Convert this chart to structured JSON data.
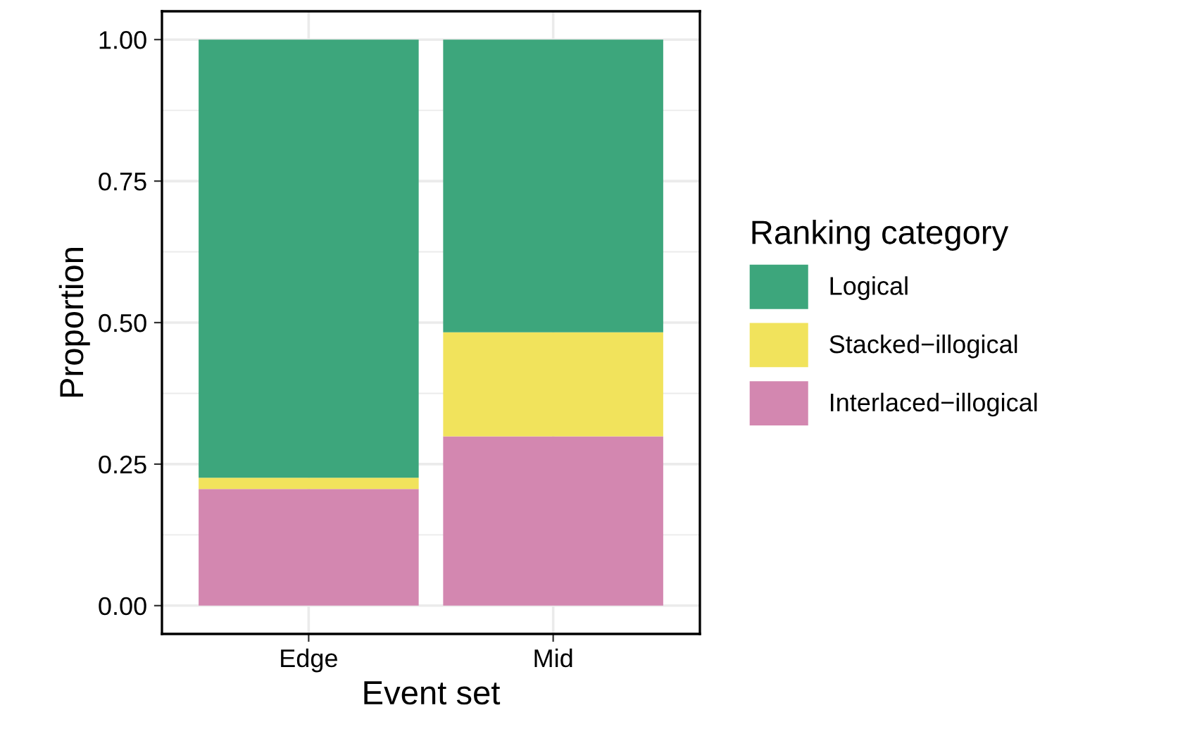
{
  "chart_data": {
    "type": "bar",
    "xlabel": "Event set",
    "ylabel": "Proportion",
    "legend_title": "Ranking category",
    "categories": [
      "Edge",
      "Mid"
    ],
    "stacked": true,
    "series": [
      {
        "name": "Interlaced−illogical",
        "color": "#d387b0",
        "values": [
          0.206,
          0.299
        ]
      },
      {
        "name": "Stacked−illogical",
        "color": "#f1e35c",
        "values": [
          0.02,
          0.184
        ]
      },
      {
        "name": "Logical",
        "color": "#3da67c",
        "values": [
          0.774,
          0.517
        ]
      }
    ],
    "ylim": [
      -0.05,
      1.05
    ],
    "yticks": [
      {
        "value": 0,
        "label": "0.00"
      },
      {
        "value": 0.25,
        "label": "0.25"
      },
      {
        "value": 0.5,
        "label": "0.50"
      },
      {
        "value": 0.75,
        "label": "0.75"
      },
      {
        "value": 1,
        "label": "1.00"
      }
    ],
    "grid": true,
    "legend": "right"
  }
}
